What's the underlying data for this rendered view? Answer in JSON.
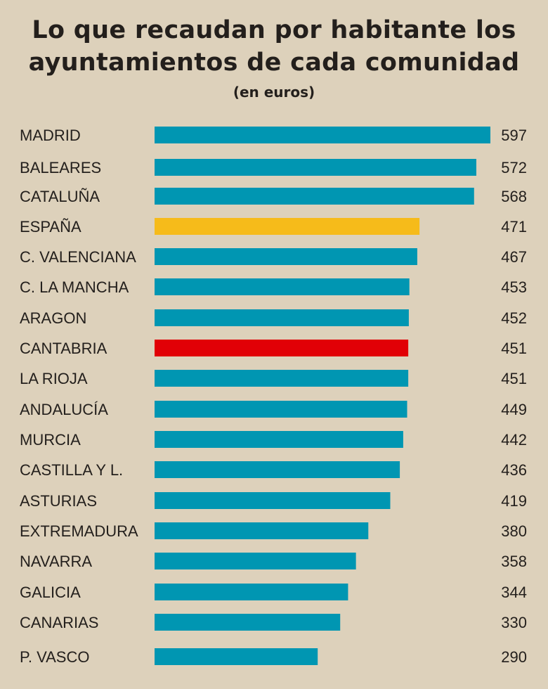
{
  "chart_data": {
    "type": "bar",
    "orientation": "horizontal",
    "title": "Lo que recaudan por habitante los ayuntamientos de cada comunidad",
    "subtitle": "(en euros)",
    "categories": [
      "MADRID",
      "BALEARES",
      "CATALUÑA",
      "ESPAÑA",
      "C. VALENCIANA",
      "C. LA MANCHA",
      "ARAGON",
      "CANTABRIA",
      "LA RIOJA",
      "ANDALUCÍA",
      "MURCIA",
      "CASTILLA Y L.",
      "ASTURIAS",
      "EXTREMADURA",
      "NAVARRA",
      "GALICIA",
      "CANARIAS",
      "P. VASCO"
    ],
    "values": [
      597,
      572,
      568,
      471,
      467,
      453,
      452,
      451,
      451,
      449,
      442,
      436,
      419,
      380,
      358,
      344,
      330,
      290
    ],
    "xlim": [
      0,
      597
    ],
    "grid": false,
    "legend": "none",
    "colors": {
      "default": "#0096b2",
      "highlights": {
        "ESPAÑA": "#f6bb1a",
        "CANTABRIA": "#e10006"
      },
      "background": "#ddd1bb",
      "text": "#231f1c"
    }
  }
}
